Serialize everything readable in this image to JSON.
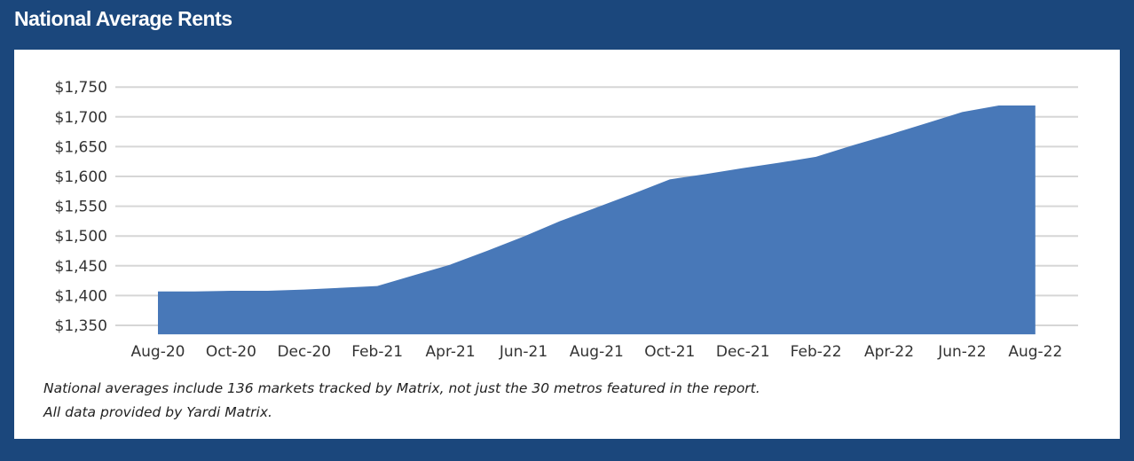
{
  "title": "National Average Rents",
  "notes": [
    "National averages include 136 markets tracked by Matrix, not just the 30 metros featured in the report.",
    "All data provided by Yardi Matrix."
  ],
  "colors": {
    "background": "#1b477c",
    "area": "#4878b8",
    "grid": "#d6d6d6"
  },
  "chart_data": {
    "type": "area",
    "title": "",
    "xlabel": "",
    "ylabel": "",
    "x_tick_labels": [
      "Aug-20",
      "Oct-20",
      "Dec-20",
      "Feb-21",
      "Apr-21",
      "Jun-21",
      "Aug-21",
      "Oct-21",
      "Dec-21",
      "Feb-22",
      "Apr-22",
      "Jun-22",
      "Aug-22"
    ],
    "x": [
      "Aug-20",
      "Sep-20",
      "Oct-20",
      "Nov-20",
      "Dec-20",
      "Jan-21",
      "Feb-21",
      "Mar-21",
      "Apr-21",
      "May-21",
      "Jun-21",
      "Jul-21",
      "Aug-21",
      "Sep-21",
      "Oct-21",
      "Nov-21",
      "Dec-21",
      "Jan-22",
      "Feb-22",
      "Mar-22",
      "Apr-22",
      "May-22",
      "Jun-22",
      "Jul-22",
      "Aug-22"
    ],
    "values": [
      1407,
      1407,
      1408,
      1408,
      1410,
      1413,
      1416,
      1434,
      1452,
      1475,
      1499,
      1525,
      1548,
      1571,
      1595,
      1604,
      1614,
      1623,
      1633,
      1652,
      1670,
      1689,
      1708,
      1719,
      1719
    ],
    "y_ticks": [
      1350,
      1400,
      1450,
      1500,
      1550,
      1600,
      1650,
      1700,
      1750
    ],
    "y_tick_labels": [
      "$1,350",
      "$1,400",
      "$1,450",
      "$1,500",
      "$1,550",
      "$1,600",
      "$1,650",
      "$1,700",
      "$1,750"
    ],
    "ylim": [
      1335,
      1750
    ],
    "grid": true,
    "legend": "none"
  }
}
